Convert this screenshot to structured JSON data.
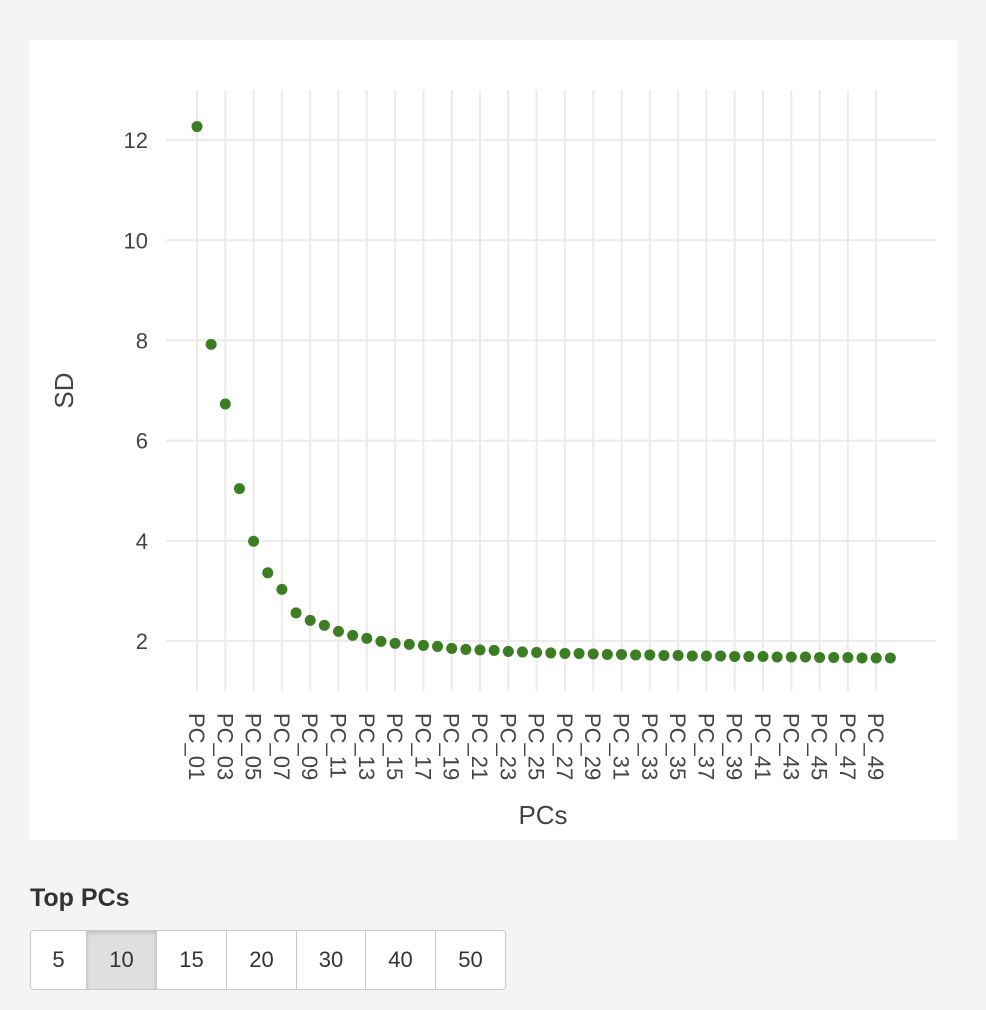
{
  "chart_data": {
    "type": "scatter",
    "title": "",
    "xlabel": "PCs",
    "ylabel": "SD",
    "ylim": [
      1,
      13
    ],
    "y_ticks": [
      2,
      4,
      6,
      8,
      10,
      12
    ],
    "grid": true,
    "point_color": "#3a7d22",
    "x_tick_labels": [
      "PC_01",
      "PC_03",
      "PC_05",
      "PC_07",
      "PC_09",
      "PC_11",
      "PC_13",
      "PC_15",
      "PC_17",
      "PC_19",
      "PC_21",
      "PC_23",
      "PC_25",
      "PC_27",
      "PC_29",
      "PC_31",
      "PC_33",
      "PC_35",
      "PC_37",
      "PC_39",
      "PC_41",
      "PC_43",
      "PC_45",
      "PC_47",
      "PC_49"
    ],
    "x": [
      "PC_01",
      "PC_02",
      "PC_03",
      "PC_04",
      "PC_05",
      "PC_06",
      "PC_07",
      "PC_08",
      "PC_09",
      "PC_10",
      "PC_11",
      "PC_12",
      "PC_13",
      "PC_14",
      "PC_15",
      "PC_16",
      "PC_17",
      "PC_18",
      "PC_19",
      "PC_20",
      "PC_21",
      "PC_22",
      "PC_23",
      "PC_24",
      "PC_25",
      "PC_26",
      "PC_27",
      "PC_28",
      "PC_29",
      "PC_30",
      "PC_31",
      "PC_32",
      "PC_33",
      "PC_34",
      "PC_35",
      "PC_36",
      "PC_37",
      "PC_38",
      "PC_39",
      "PC_40",
      "PC_41",
      "PC_42",
      "PC_43",
      "PC_44",
      "PC_45",
      "PC_46",
      "PC_47",
      "PC_48",
      "PC_49",
      "PC_50"
    ],
    "y": [
      12.27,
      7.92,
      6.73,
      5.04,
      3.99,
      3.36,
      3.03,
      2.56,
      2.41,
      2.31,
      2.19,
      2.11,
      2.05,
      1.99,
      1.95,
      1.93,
      1.91,
      1.89,
      1.85,
      1.83,
      1.82,
      1.81,
      1.79,
      1.78,
      1.77,
      1.76,
      1.75,
      1.75,
      1.74,
      1.73,
      1.73,
      1.72,
      1.72,
      1.71,
      1.71,
      1.7,
      1.7,
      1.7,
      1.69,
      1.69,
      1.69,
      1.68,
      1.68,
      1.68,
      1.67,
      1.67,
      1.67,
      1.66,
      1.66,
      1.66
    ]
  },
  "controls": {
    "label": "Top PCs",
    "selected": "10",
    "options": [
      "5",
      "10",
      "15",
      "20",
      "30",
      "40",
      "50"
    ]
  }
}
